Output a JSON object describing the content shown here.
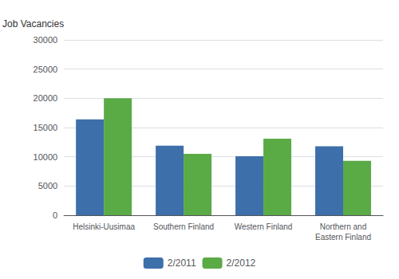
{
  "chart_data": {
    "type": "bar",
    "ylabel": "Job Vacancies",
    "categories": [
      "Helsinki-Uusimaa",
      "Southern Finland",
      "Western Finland",
      "Northern and\nEastern Finland"
    ],
    "series": [
      {
        "name": "2/2011",
        "color": "#3d6faa",
        "values": [
          16400,
          11900,
          10100,
          11800
        ]
      },
      {
        "name": "2/2012",
        "color": "#5aaa46",
        "values": [
          20000,
          10500,
          13100,
          9300
        ]
      }
    ],
    "ylim": [
      0,
      30000
    ],
    "yticks": [
      0,
      5000,
      10000,
      15000,
      20000,
      25000,
      30000
    ],
    "grid": true,
    "legend": "bottom"
  }
}
